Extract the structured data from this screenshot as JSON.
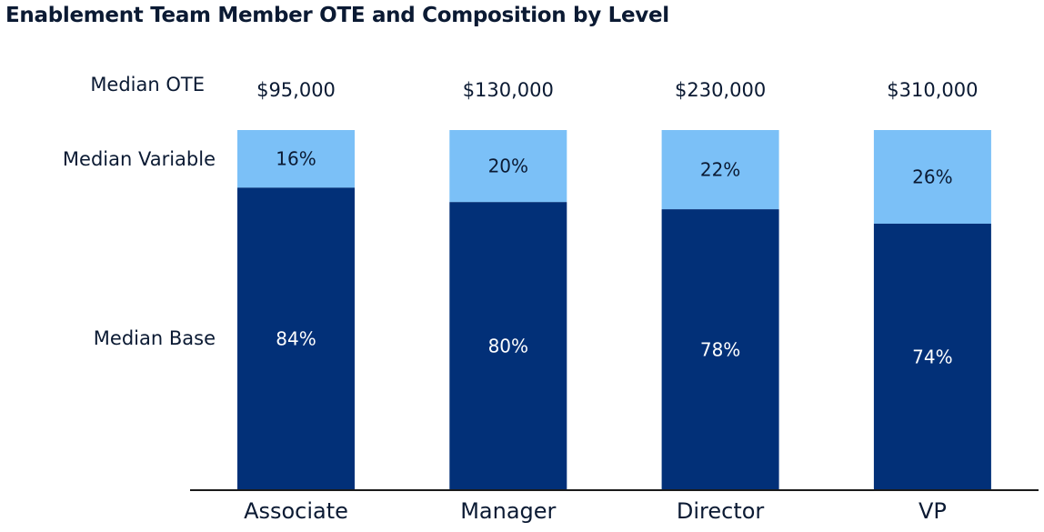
{
  "title": "Enablement Team Member OTE and Composition by Level",
  "row_labels": {
    "ote": "Median OTE",
    "variable": "Median Variable",
    "base": "Median Base"
  },
  "colors": {
    "base": "#023078",
    "variable": "#7bc0f7",
    "base_text": "#ffffff",
    "variable_text": "#0b1a33",
    "axis": "#1a1a1a"
  },
  "chart_data": {
    "type": "bar",
    "stacked": true,
    "categories": [
      "Associate",
      "Manager",
      "Director",
      "VP"
    ],
    "ote": [
      "$95,000",
      "$130,000",
      "$230,000",
      "$310,000"
    ],
    "series": [
      {
        "name": "Median Base",
        "values": [
          84,
          80,
          78,
          74
        ],
        "labels": [
          "84%",
          "80%",
          "78%",
          "74%"
        ]
      },
      {
        "name": "Median Variable",
        "values": [
          16,
          20,
          22,
          26
        ],
        "labels": [
          "16%",
          "20%",
          "22%",
          "26%"
        ]
      }
    ],
    "ylim": [
      0,
      100
    ],
    "grid": false,
    "legend": "row labels on left"
  }
}
